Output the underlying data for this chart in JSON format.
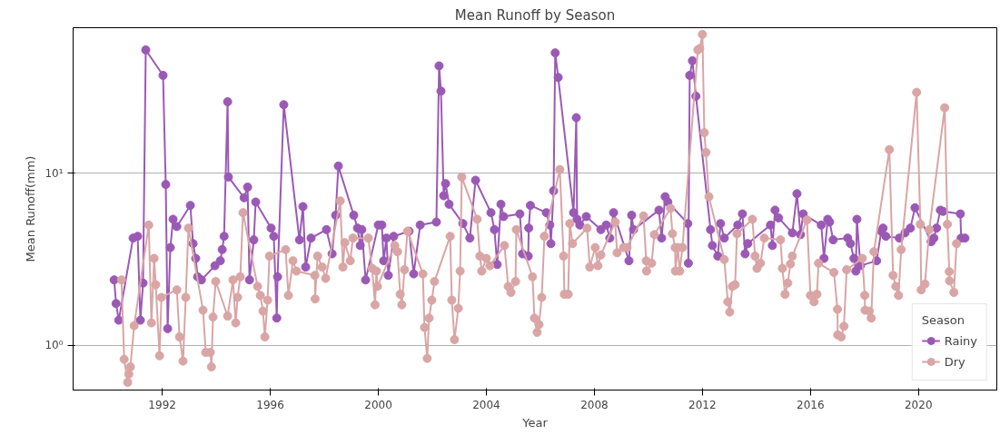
{
  "chart_data": {
    "type": "line",
    "title": "Mean Runoff by Season",
    "xlabel": "Year",
    "ylabel": "Mean Runoff(mm)",
    "legend_title": "Season",
    "log": "y",
    "grid": "y",
    "legend": "bottom right",
    "marker": "circle",
    "line_style": "solid",
    "xlim": [
      1988.7,
      2022.9
    ],
    "xticks": [
      1992,
      1996,
      2000,
      2004,
      2008,
      2012,
      2016,
      2020
    ],
    "ylim": [
      0.55,
      70
    ],
    "yticks": [
      {
        "value": 1,
        "label": "10⁰"
      },
      {
        "value": 10,
        "label": "10¹"
      }
    ],
    "series": [
      {
        "name": "Rainy",
        "color": "#9b59b6",
        "x": [
          1990.22,
          1990.29,
          1990.39,
          1990.92,
          1991.09,
          1991.19,
          1991.29,
          1991.39,
          1992.03,
          1992.13,
          1992.2,
          1992.3,
          1992.4,
          1992.54,
          1993.04,
          1993.14,
          1993.24,
          1993.31,
          1993.45,
          1993.95,
          1994.15,
          1994.22,
          1994.29,
          1994.42,
          1994.45,
          1995.03,
          1995.16,
          1995.23,
          1995.39,
          1995.46,
          1996.03,
          1996.13,
          1996.24,
          1996.27,
          1996.5,
          1997.08,
          1997.21,
          1997.31,
          1997.51,
          1998.08,
          1998.29,
          1998.42,
          1998.52,
          1999.09,
          1999.23,
          1999.33,
          1999.39,
          1999.53,
          2000.0,
          2000.13,
          2000.2,
          2000.3,
          2000.37,
          2000.57,
          2001.14,
          2001.31,
          2001.55,
          2002.15,
          2002.25,
          2002.32,
          2002.42,
          2002.49,
          2002.62,
          2003.13,
          2003.39,
          2003.6,
          2004.17,
          2004.3,
          2004.4,
          2004.54,
          2004.64,
          2005.24,
          2005.34,
          2005.55,
          2005.57,
          2005.63,
          2006.22,
          2006.35,
          2006.39,
          2006.49,
          2006.55,
          2006.66,
          2007.23,
          2007.33,
          2007.36,
          2007.46,
          2007.7,
          2008.24,
          2008.44,
          2008.57,
          2008.71,
          2009.28,
          2009.38,
          2009.45,
          2010.39,
          2010.49,
          2010.62,
          2010.72,
          2011.46,
          2011.48,
          2011.53,
          2011.63,
          2011.76,
          2012.3,
          2012.37,
          2012.57,
          2012.67,
          2012.81,
          2013.31,
          2013.48,
          2013.58,
          2013.68,
          2014.52,
          2014.59,
          2014.69,
          2014.82,
          2015.33,
          2015.5,
          2015.63,
          2015.73,
          2016.4,
          2016.5,
          2016.64,
          2016.71,
          2016.84,
          2017.38,
          2017.48,
          2017.61,
          2017.68,
          2017.72,
          2017.85,
          2018.45,
          2018.62,
          2018.69,
          2018.79,
          2019.29,
          2019.5,
          2019.7,
          2019.87,
          2020.47,
          2020.57,
          2020.67,
          2020.81,
          2020.91,
          2021.55,
          2021.58,
          2021.72
        ],
        "values": [
          2.4,
          1.75,
          1.4,
          4.2,
          4.3,
          1.4,
          2.3,
          52,
          37,
          8.6,
          1.25,
          3.7,
          5.4,
          4.9,
          6.5,
          3.9,
          3.2,
          2.5,
          2.4,
          2.9,
          3.1,
          3.6,
          4.3,
          26,
          9.5,
          7.2,
          8.3,
          2.4,
          4.1,
          6.8,
          4.8,
          4.3,
          1.44,
          2.5,
          25,
          4.1,
          6.4,
          2.85,
          4.2,
          4.7,
          3.4,
          5.7,
          11,
          5.7,
          4.8,
          3.8,
          4.7,
          2.4,
          5.0,
          5.0,
          3.1,
          4.2,
          2.55,
          4.3,
          4.6,
          2.6,
          5.0,
          5.2,
          42,
          30,
          7.4,
          8.7,
          6.6,
          5.1,
          4.2,
          9.1,
          5.9,
          4.7,
          2.95,
          6.6,
          5.6,
          5.8,
          3.4,
          3.3,
          4.8,
          6.5,
          5.9,
          5.0,
          3.9,
          7.9,
          50,
          36,
          5.9,
          21,
          5.4,
          5.0,
          5.6,
          4.7,
          5.0,
          4.2,
          5.9,
          3.1,
          5.7,
          4.7,
          6.1,
          4.2,
          7.3,
          6.8,
          5.1,
          3.0,
          37,
          45,
          28,
          4.7,
          3.8,
          3.3,
          5.1,
          4.2,
          5.0,
          5.8,
          3.4,
          3.9,
          5.0,
          3.8,
          6.1,
          5.5,
          4.5,
          7.6,
          4.4,
          5.8,
          5.0,
          3.2,
          5.4,
          5.2,
          4.1,
          4.2,
          3.9,
          3.2,
          2.7,
          5.4,
          2.9,
          3.1,
          4.6,
          4.8,
          4.3,
          4.2,
          4.5,
          4.8,
          6.3,
          4.0,
          4.2,
          4.8,
          6.1,
          6.0,
          5.8,
          4.2,
          4.2
        ]
      },
      {
        "name": "Dry",
        "color": "#d9a5a5",
        "x": [
          1990.49,
          1990.59,
          1990.72,
          1990.76,
          1990.82,
          1990.96,
          1991.5,
          1991.6,
          1991.7,
          1991.76,
          1991.9,
          1991.97,
          1992.54,
          1992.64,
          1992.77,
          1992.87,
          1992.97,
          1993.51,
          1993.61,
          1993.78,
          1993.82,
          1993.88,
          1993.98,
          1994.42,
          1994.62,
          1994.72,
          1994.79,
          1994.89,
          1994.99,
          1995.53,
          1995.63,
          1995.73,
          1995.8,
          1995.9,
          1995.97,
          1996.57,
          1996.67,
          1996.84,
          1996.97,
          1997.65,
          1997.66,
          1997.75,
          1997.92,
          1998.05,
          1998.59,
          1998.69,
          1998.76,
          1998.96,
          1999.06,
          1999.63,
          1999.77,
          1999.88,
          1999.93,
          1999.97,
          2000.61,
          2000.71,
          2000.81,
          2000.87,
          2000.97,
          2001.08,
          2001.65,
          2001.71,
          2001.81,
          2001.88,
          2001.98,
          2002.08,
          2002.66,
          2002.72,
          2002.82,
          2002.96,
          2003.03,
          2003.09,
          2003.66,
          2003.76,
          2003.83,
          2004.0,
          2004.13,
          2004.67,
          2004.81,
          2004.91,
          2005.08,
          2005.11,
          2005.71,
          2005.78,
          2005.88,
          2005.95,
          2006.05,
          2006.15,
          2006.72,
          2006.86,
          2006.89,
          2007.03,
          2007.09,
          2007.19,
          2007.73,
          2007.83,
          2008.03,
          2008.13,
          2008.24,
          2008.77,
          2008.84,
          2009.08,
          2009.21,
          2009.82,
          2009.92,
          2009.93,
          2010.12,
          2010.22,
          2010.82,
          2010.89,
          2010.99,
          2011.0,
          2011.09,
          2011.16,
          2011.26,
          2011.83,
          2011.9,
          2012.0,
          2012.07,
          2012.13,
          2012.24,
          2012.81,
          2012.94,
          2013.01,
          2013.11,
          2013.21,
          2013.28,
          2013.85,
          2013.95,
          2014.02,
          2014.15,
          2014.29,
          2014.89,
          2014.96,
          2015.06,
          2015.16,
          2015.26,
          2015.33,
          2015.87,
          2016.0,
          2016.13,
          2016.24,
          2016.3,
          2016.87,
          2017.0,
          2017.01,
          2017.14,
          2017.24,
          2017.34,
          2017.92,
          2018.01,
          2018.02,
          2018.18,
          2018.25,
          2018.35,
          2018.92,
          2019.06,
          2019.16,
          2019.26,
          2019.36,
          2019.93,
          2020.07,
          2020.1,
          2020.24,
          2020.4,
          2020.97,
          2021.07,
          2021.14,
          2021.15,
          2021.31,
          2021.41
        ],
        "values": [
          2.4,
          0.83,
          0.61,
          0.68,
          0.75,
          1.3,
          5.0,
          1.35,
          3.2,
          2.25,
          0.87,
          1.9,
          2.1,
          1.12,
          0.81,
          1.9,
          4.8,
          1.6,
          0.91,
          0.91,
          0.75,
          1.46,
          2.35,
          1.48,
          2.4,
          1.35,
          1.9,
          2.5,
          5.9,
          2.2,
          1.95,
          1.58,
          1.12,
          1.83,
          3.3,
          3.6,
          1.95,
          3.1,
          2.7,
          2.55,
          1.86,
          3.3,
          2.85,
          2.45,
          6.9,
          2.85,
          3.95,
          3.1,
          4.2,
          4.2,
          2.8,
          1.72,
          2.7,
          2.2,
          3.8,
          3.5,
          1.98,
          1.72,
          2.75,
          4.6,
          2.6,
          1.27,
          0.84,
          1.44,
          1.83,
          2.35,
          4.3,
          1.83,
          1.08,
          1.64,
          2.7,
          9.5,
          5.4,
          3.3,
          2.7,
          3.2,
          2.9,
          3.8,
          2.2,
          2.03,
          2.35,
          4.7,
          2.5,
          1.44,
          1.19,
          1.32,
          1.9,
          4.3,
          10.5,
          3.3,
          1.98,
          1.98,
          5.1,
          3.9,
          4.8,
          2.85,
          3.7,
          2.9,
          3.35,
          5.2,
          3.45,
          3.7,
          3.7,
          5.65,
          3.1,
          2.7,
          3.0,
          4.4,
          6.25,
          4.45,
          3.7,
          2.7,
          3.7,
          2.7,
          3.7,
          52,
          53,
          64,
          17.2,
          13.2,
          7.3,
          3.15,
          1.79,
          1.56,
          2.2,
          2.25,
          4.45,
          5.4,
          3.3,
          2.8,
          3.0,
          4.2,
          4.1,
          2.8,
          1.98,
          2.3,
          2.97,
          3.3,
          5.35,
          1.95,
          1.79,
          1.98,
          3.0,
          2.65,
          1.62,
          1.15,
          1.12,
          1.29,
          2.75,
          3.2,
          1.95,
          1.6,
          1.58,
          1.44,
          3.5,
          13.7,
          2.55,
          2.2,
          1.95,
          3.6,
          29.5,
          5.05,
          2.1,
          2.27,
          4.7,
          24,
          5.05,
          2.68,
          2.37,
          2.03,
          3.9
        ]
      }
    ]
  }
}
